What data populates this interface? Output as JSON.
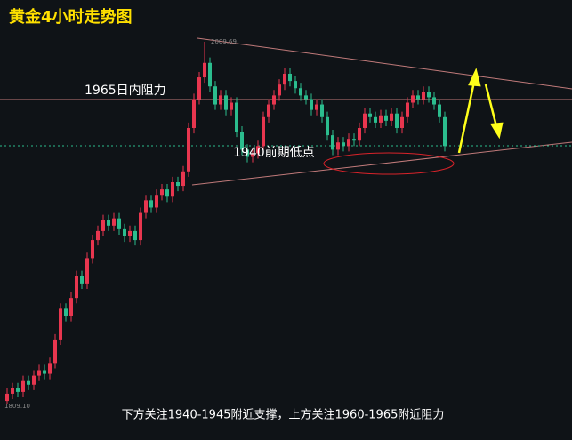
{
  "chart_data": {
    "type": "candlestick",
    "title": "黄金4小时走势图",
    "subtitle": "下方关注1940-1945附近支撑，上方关注1960-1965附近阻力",
    "annotations": [
      "1965日内阻力",
      "1940前期低点"
    ],
    "high_label": "2009.69",
    "low_label": "1809.10",
    "up_color": "#e8364f",
    "down_color": "#2bbd8e",
    "ylim": [
      1789.4,
      2032.8
    ],
    "open": [
      1811,
      1815,
      1818,
      1816,
      1822,
      1820,
      1825,
      1828,
      1826,
      1832,
      1845,
      1862,
      1858,
      1868,
      1880,
      1876,
      1890,
      1900,
      1905,
      1911,
      1908,
      1912,
      1906,
      1902,
      1905,
      1900,
      1915,
      1922,
      1918,
      1925,
      1928,
      1924,
      1932,
      1930,
      1938,
      1962,
      1978,
      1990,
      1998,
      1985,
      1975,
      1980,
      1972,
      1976,
      1960,
      1950,
      1946,
      1948,
      1952,
      1968,
      1975,
      1980,
      1986,
      1992,
      1988,
      1984,
      1980,
      1978,
      1972,
      1975,
      1968,
      1958,
      1950,
      1954,
      1952,
      1956,
      1955,
      1962,
      1970,
      1968,
      1965,
      1969,
      1966,
      1970,
      1962,
      1968,
      1976,
      1980,
      1978,
      1982,
      1979,
      1975,
      1968
    ],
    "high": [
      1818,
      1821,
      1821,
      1825,
      1825,
      1828,
      1831,
      1831,
      1835,
      1848,
      1865,
      1865,
      1871,
      1883,
      1883,
      1893,
      1903,
      1908,
      1914,
      1914,
      1915,
      1915,
      1909,
      1908,
      1908,
      1918,
      1925,
      1925,
      1928,
      1931,
      1931,
      1935,
      1935,
      1941,
      1965,
      1981,
      1993,
      2009.69,
      2001,
      1988,
      1983,
      1983,
      1979,
      1979,
      1963,
      1953,
      1951,
      1955,
      1971,
      1978,
      1983,
      1989,
      1995,
      1995,
      1991,
      1987,
      1983,
      1981,
      1978,
      1978,
      1971,
      1961,
      1957,
      1957,
      1959,
      1959,
      1965,
      1973,
      1973,
      1971,
      1972,
      1972,
      1973,
      1973,
      1971,
      1979,
      1983,
      1983,
      1985,
      1985,
      1982,
      1978,
      1971
    ],
    "low": [
      1809.1,
      1812,
      1813,
      1813,
      1817,
      1817,
      1822,
      1823,
      1823,
      1829,
      1842,
      1855,
      1855,
      1865,
      1873,
      1873,
      1887,
      1897,
      1902,
      1905,
      1905,
      1903,
      1899,
      1899,
      1897,
      1897,
      1912,
      1915,
      1915,
      1922,
      1921,
      1921,
      1927,
      1927,
      1935,
      1959,
      1975,
      1987,
      1982,
      1972,
      1972,
      1969,
      1969,
      1957,
      1947,
      1943,
      1943,
      1945,
      1949,
      1965,
      1972,
      1977,
      1983,
      1985,
      1981,
      1977,
      1975,
      1969,
      1969,
      1965,
      1955,
      1947,
      1947,
      1949,
      1949,
      1952,
      1952,
      1959,
      1965,
      1962,
      1962,
      1963,
      1963,
      1959,
      1959,
      1965,
      1973,
      1975,
      1975,
      1976,
      1972,
      1965,
      1949
    ],
    "close": [
      1815,
      1818,
      1816,
      1822,
      1820,
      1825,
      1828,
      1826,
      1832,
      1845,
      1862,
      1858,
      1868,
      1880,
      1876,
      1890,
      1900,
      1905,
      1911,
      1908,
      1912,
      1906,
      1902,
      1905,
      1900,
      1915,
      1922,
      1918,
      1925,
      1928,
      1924,
      1932,
      1930,
      1938,
      1962,
      1978,
      1990,
      1998,
      1985,
      1975,
      1980,
      1972,
      1976,
      1960,
      1950,
      1946,
      1948,
      1952,
      1968,
      1975,
      1980,
      1986,
      1992,
      1988,
      1984,
      1980,
      1978,
      1972,
      1975,
      1968,
      1958,
      1950,
      1954,
      1952,
      1956,
      1955,
      1962,
      1970,
      1968,
      1965,
      1969,
      1966,
      1970,
      1962,
      1968,
      1976,
      1980,
      1978,
      1982,
      1979,
      1975,
      1968,
      1952
    ]
  }
}
